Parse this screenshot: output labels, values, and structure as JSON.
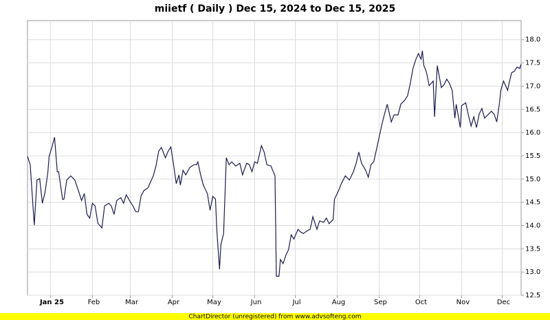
{
  "chart_data": {
    "type": "line",
    "title": "miietf ( Daily ) Dec 15, 2024 to Dec 15, 2025",
    "footer": "ChartDirector (unregistered) from www.advsofteng.com",
    "color": "#1a1a4e",
    "grid": true,
    "y_axis_side": "right",
    "xlim": [
      0,
      365
    ],
    "xticks": [
      {
        "value": 17,
        "label": "Jan 25"
      },
      {
        "value": 48,
        "label": "Feb"
      },
      {
        "value": 76,
        "label": "Mar"
      },
      {
        "value": 107,
        "label": "Apr"
      },
      {
        "value": 137,
        "label": "May"
      },
      {
        "value": 168,
        "label": "Jun"
      },
      {
        "value": 198,
        "label": "Jul"
      },
      {
        "value": 229,
        "label": "Aug"
      },
      {
        "value": 260,
        "label": "Sep"
      },
      {
        "value": 290,
        "label": "Oct"
      },
      {
        "value": 321,
        "label": "Nov"
      },
      {
        "value": 351,
        "label": "Dec"
      }
    ],
    "ylim": [
      12.5,
      18.41
    ],
    "yticks": [
      12.5,
      {
        "value": 13,
        "label": "13.0"
      },
      13.5,
      {
        "value": 14,
        "label": "14.0"
      },
      14.5,
      {
        "value": 15,
        "label": "15.0"
      },
      15.5,
      {
        "value": 16,
        "label": "16.0"
      },
      16.5,
      {
        "value": 17,
        "label": "17.0"
      },
      17.5,
      {
        "value": 18,
        "label": "18.0"
      }
    ],
    "x": [
      0,
      2,
      5,
      7,
      9,
      11,
      13,
      15,
      16,
      18,
      20,
      22,
      23,
      26,
      27,
      29,
      32,
      35,
      38,
      40,
      42,
      44,
      46,
      48,
      50,
      52,
      55,
      57,
      60,
      62,
      64,
      66,
      69,
      71,
      73,
      76,
      78,
      80,
      82,
      84,
      86,
      89,
      93,
      95,
      97,
      99,
      102,
      104,
      106,
      108,
      110,
      112,
      113,
      115,
      117,
      120,
      123,
      125,
      126,
      128,
      130,
      133,
      135,
      137,
      139,
      140,
      142,
      143,
      145,
      147,
      149,
      151,
      154,
      157,
      159,
      162,
      164,
      166,
      168,
      170,
      173,
      175,
      177,
      180,
      183,
      184,
      186,
      187,
      189,
      191,
      193,
      195,
      197,
      200,
      202,
      204,
      207,
      209,
      211,
      214,
      216,
      219,
      221,
      223,
      226,
      227,
      230,
      232,
      235,
      238,
      241,
      243,
      245,
      247,
      250,
      252,
      254,
      256,
      258,
      260,
      262,
      264,
      266,
      269,
      271,
      274,
      276,
      279,
      281,
      283,
      285,
      287,
      289,
      291,
      292,
      293,
      295,
      297,
      300,
      301,
      303,
      306,
      308,
      310,
      312,
      314,
      316,
      317,
      320,
      321,
      324,
      326,
      328,
      330,
      332,
      334,
      336,
      338,
      341,
      343,
      345,
      347,
      349,
      350,
      352,
      355,
      356,
      358,
      360,
      362,
      364,
      365
    ],
    "values": [
      15.49,
      15.31,
      14.01,
      14.98,
      15.01,
      14.48,
      14.72,
      15.13,
      15.49,
      15.68,
      15.9,
      15.16,
      15.16,
      14.56,
      14.57,
      14.98,
      15.07,
      14.98,
      14.72,
      14.54,
      14.69,
      14.24,
      14.16,
      14.48,
      14.42,
      14.05,
      13.95,
      14.42,
      14.48,
      14.42,
      14.24,
      14.54,
      14.6,
      14.48,
      14.66,
      14.51,
      14.42,
      14.3,
      14.3,
      14.64,
      14.75,
      14.81,
      15.07,
      15.28,
      15.6,
      15.68,
      15.46,
      15.6,
      15.69,
      15.31,
      14.9,
      15.09,
      14.87,
      15.19,
      15.09,
      15.25,
      15.31,
      15.31,
      15.37,
      15.09,
      14.87,
      14.69,
      14.33,
      14.63,
      14.57,
      13.89,
      13.06,
      13.59,
      13.83,
      15.46,
      15.31,
      15.37,
      15.28,
      15.34,
      15.09,
      15.34,
      15.31,
      15.16,
      15.37,
      15.34,
      15.72,
      15.58,
      15.31,
      15.28,
      15.07,
      12.91,
      12.91,
      13.27,
      13.18,
      13.36,
      13.48,
      13.8,
      13.71,
      13.92,
      13.86,
      13.83,
      13.89,
      13.92,
      14.19,
      13.92,
      14.1,
      14.07,
      14.16,
      14.04,
      14.13,
      14.57,
      14.75,
      14.9,
      15.07,
      14.98,
      15.16,
      15.34,
      15.58,
      15.34,
      15.19,
      15.04,
      15.31,
      15.37,
      15.63,
      15.9,
      16.17,
      16.4,
      16.61,
      16.23,
      16.38,
      16.38,
      16.61,
      16.7,
      16.79,
      17.05,
      17.38,
      17.56,
      17.7,
      17.58,
      17.76,
      17.45,
      17.3,
      17.01,
      17.11,
      16.34,
      17.44,
      16.97,
      17.03,
      17.15,
      17.06,
      16.91,
      16.31,
      16.61,
      16.11,
      16.58,
      16.64,
      16.38,
      16.14,
      16.34,
      16.11,
      16.4,
      16.52,
      16.31,
      16.4,
      16.46,
      16.4,
      16.23,
      16.64,
      16.91,
      17.11,
      16.91,
      17.05,
      17.29,
      17.32,
      17.41,
      17.38,
      17.47
    ]
  }
}
